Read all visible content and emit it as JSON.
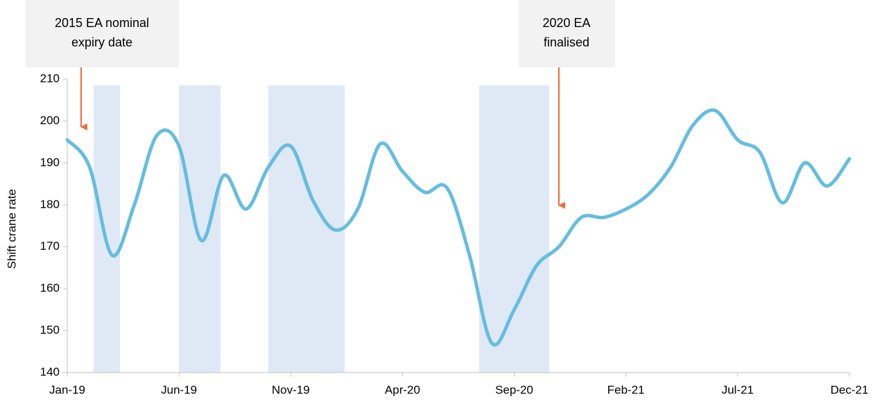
{
  "chart_data": {
    "type": "line",
    "y_label": "Shift crane rate",
    "categories": [
      "Jan-19",
      null,
      null,
      null,
      null,
      "Jun-19",
      null,
      null,
      null,
      null,
      "Nov-19",
      null,
      null,
      null,
      null,
      "Apr-20",
      null,
      null,
      null,
      null,
      "Sep-20",
      null,
      null,
      null,
      null,
      "Feb-21",
      null,
      null,
      null,
      null,
      "Jul-21",
      null,
      null,
      null,
      null,
      "Dec-21"
    ],
    "series": [
      {
        "name": "Shift crane rate",
        "color": "#65bde0",
        "values": [
          195.5,
          189,
          168,
          180,
          196.5,
          194,
          171.5,
          187,
          179,
          189,
          194,
          181,
          174,
          179,
          194.5,
          188,
          183,
          184,
          168,
          147,
          155,
          165.5,
          170,
          177,
          177,
          179,
          182.5,
          189,
          199,
          202.5,
          195.5,
          192.5,
          180.5,
          190,
          184.5,
          191
        ]
      }
    ],
    "ylim": [
      140,
      210
    ],
    "yticks": [
      140,
      150,
      160,
      170,
      180,
      190,
      200,
      210
    ],
    "annotations": [
      {
        "lines": [
          "2015 EA nominal",
          "expiry date"
        ]
      },
      {
        "lines": [
          "2020 EA",
          "finalised"
        ]
      }
    ]
  }
}
